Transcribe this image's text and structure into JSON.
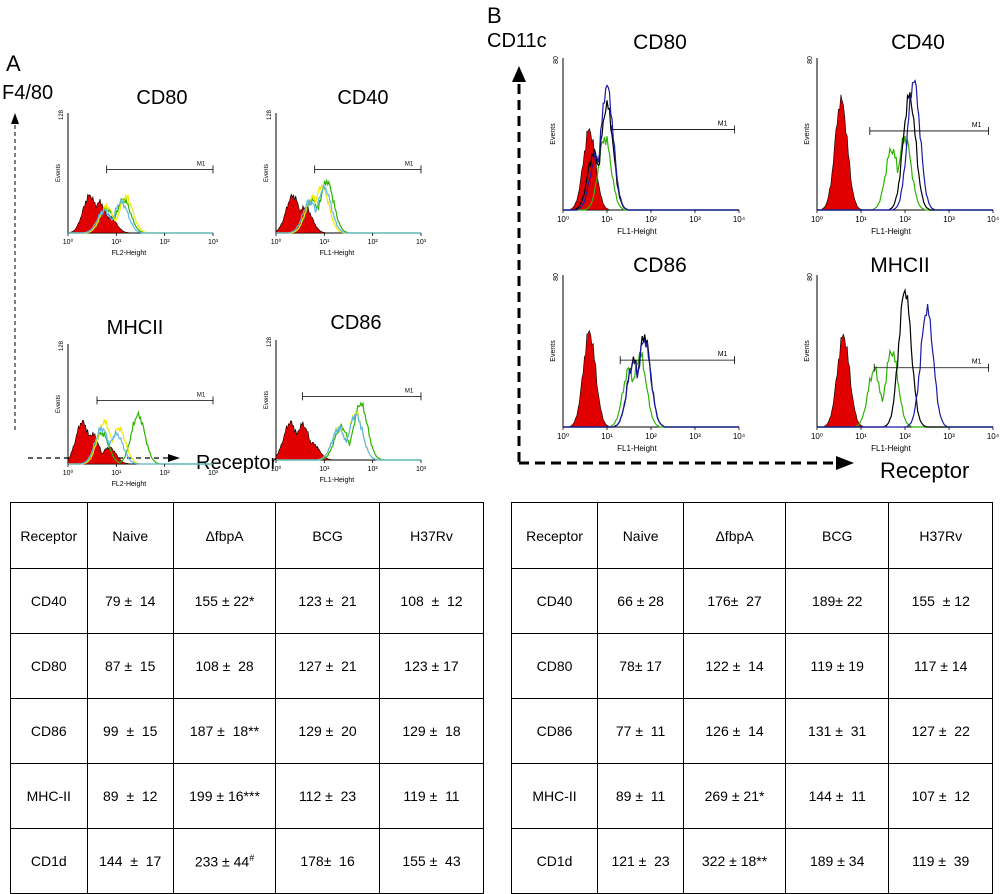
{
  "panels": [
    {
      "letter": "A",
      "axis_label": "F4/80",
      "receptor_label": "Receptor",
      "histograms": [
        {
          "title": "CD80",
          "xlabel": "FL2-Height",
          "ylabel": "Events",
          "ymax_label": "128",
          "gate": "M1",
          "x_ticks": [
            "10⁰",
            "10¹",
            "10²",
            "10³"
          ]
        },
        {
          "title": "CD40",
          "xlabel": "FL1-Height",
          "ylabel": "Events",
          "ymax_label": "128",
          "gate": "M1",
          "x_ticks": [
            "10⁰",
            "10¹",
            "10²",
            "10³"
          ]
        },
        {
          "title": "MHCII",
          "xlabel": "FL2-Height",
          "ylabel": "Events",
          "ymax_label": "128",
          "gate": "M1",
          "x_ticks": [
            "10⁰",
            "10¹",
            "10²",
            "10³"
          ]
        },
        {
          "title": "CD86",
          "xlabel": "FL1-Height",
          "ylabel": "Events",
          "ymax_label": "128",
          "gate": "M1",
          "x_ticks": [
            "10⁰",
            "10¹",
            "10²",
            "10³"
          ]
        }
      ],
      "table": {
        "headers": [
          "Receptor",
          "Naive",
          "ΔfbpA",
          "BCG",
          "H37Rv"
        ],
        "rows": [
          {
            "receptor": "CD40",
            "naive": "79 ±  14",
            "fbpa": "155 ± 22",
            "fbpa_mark": "*",
            "bcg": "123 ±  21",
            "h37rv": "108  ±  12"
          },
          {
            "receptor": "CD80",
            "naive": "87 ±  15",
            "fbpa": "108 ±  28",
            "fbpa_mark": "",
            "bcg": "127 ±  21",
            "h37rv": "123 ± 17"
          },
          {
            "receptor": "CD86",
            "naive": "99  ±  15",
            "fbpa": "187 ±  18",
            "fbpa_mark": "**",
            "bcg": "129 ±  20",
            "h37rv": "129 ±  18"
          },
          {
            "receptor": "MHC-II",
            "naive": "89  ±  12",
            "fbpa": "199 ± 16",
            "fbpa_mark": "***",
            "bcg": "112 ±  23",
            "h37rv": "119 ±  11"
          },
          {
            "receptor": "CD1d",
            "naive": "144  ±  17",
            "fbpa": "233 ± 44",
            "fbpa_mark": "#",
            "bcg": "178±  16",
            "h37rv": "155 ±  43"
          }
        ]
      }
    },
    {
      "letter": "B",
      "axis_label": "CD11c",
      "receptor_label": "Receptor",
      "histograms": [
        {
          "title": "CD80",
          "xlabel": "FL1-Height",
          "ylabel": "Events",
          "ymax_label": "80",
          "gate": "M1",
          "x_ticks": [
            "10⁰",
            "10¹",
            "10²",
            "10³",
            "10⁴"
          ]
        },
        {
          "title": "CD40",
          "xlabel": "FL1-Height",
          "ylabel": "Events",
          "ymax_label": "80",
          "gate": "M1",
          "x_ticks": [
            "10⁰",
            "10¹",
            "10²",
            "10³",
            "10⁴"
          ]
        },
        {
          "title": "CD86",
          "xlabel": "FL1-Height",
          "ylabel": "Events",
          "ymax_label": "80",
          "gate": "M1",
          "x_ticks": [
            "10⁰",
            "10¹",
            "10²",
            "10³",
            "10⁴"
          ]
        },
        {
          "title": "MHCII",
          "xlabel": "FL1-Height",
          "ylabel": "Events",
          "ymax_label": "80",
          "gate": "M1",
          "x_ticks": [
            "10⁰",
            "10¹",
            "10²",
            "10³",
            "10⁴"
          ]
        }
      ],
      "table": {
        "headers": [
          "Receptor",
          "Naive",
          "ΔfbpA",
          "BCG",
          "H37Rv"
        ],
        "rows": [
          {
            "receptor": "CD40",
            "naive": "66 ± 28",
            "fbpa": "176±  27",
            "fbpa_mark": "",
            "bcg": "189± 22",
            "h37rv": "155  ± 12"
          },
          {
            "receptor": "CD80",
            "naive": "78± 17",
            "fbpa": "122 ±  14",
            "fbpa_mark": "",
            "bcg": "119 ± 19",
            "h37rv": "117 ± 14"
          },
          {
            "receptor": "CD86",
            "naive": "77 ±  11",
            "fbpa": "126 ±  14",
            "fbpa_mark": "",
            "bcg": "131 ±  31",
            "h37rv": "127 ±  22"
          },
          {
            "receptor": "MHC-II",
            "naive": "89 ±  11",
            "fbpa": "269 ± 21",
            "fbpa_mark": "*",
            "bcg": "144 ±  11",
            "h37rv": "107 ±  12"
          },
          {
            "receptor": "CD1d",
            "naive": "121 ±  23",
            "fbpa": "322 ± 18",
            "fbpa_mark": "**",
            "bcg": "189 ± 34",
            "h37rv": "119 ±  39"
          }
        ]
      }
    }
  ],
  "chart_data": [
    {
      "type": "table",
      "panel": "A",
      "columns": [
        "Receptor",
        "Naive",
        "ΔfbpA",
        "BCG",
        "H37Rv"
      ],
      "rows": [
        [
          "CD40",
          "79 ± 14",
          "155 ± 22*",
          "123 ± 21",
          "108 ± 12"
        ],
        [
          "CD80",
          "87 ± 15",
          "108 ± 28",
          "127 ± 21",
          "123 ± 17"
        ],
        [
          "CD86",
          "99 ± 15",
          "187 ± 18**",
          "129 ± 20",
          "129 ± 18"
        ],
        [
          "MHC-II",
          "89 ± 12",
          "199 ± 16***",
          "112 ± 23",
          "119 ± 11"
        ],
        [
          "CD1d",
          "144 ± 17",
          "233 ± 44#",
          "178 ± 16",
          "155 ± 43"
        ]
      ]
    },
    {
      "type": "table",
      "panel": "B",
      "columns": [
        "Receptor",
        "Naive",
        "ΔfbpA",
        "BCG",
        "H37Rv"
      ],
      "rows": [
        [
          "CD40",
          "66 ± 28",
          "176 ± 27",
          "189 ± 22",
          "155 ± 12"
        ],
        [
          "CD80",
          "78 ± 17",
          "122 ± 14",
          "119 ± 19",
          "117 ± 14"
        ],
        [
          "CD86",
          "77 ± 11",
          "126 ± 14",
          "131 ± 31",
          "127 ± 22"
        ],
        [
          "MHC-II",
          "89 ± 11",
          "269 ± 21*",
          "144 ± 11",
          "107 ± 12"
        ],
        [
          "CD1d",
          "121 ± 23",
          "322 ± 18**",
          "189 ± 34",
          "119 ± 39"
        ]
      ]
    },
    {
      "type": "area",
      "panel": "A",
      "title": "CD80",
      "xlabel": "FL2-Height",
      "ylabel": "Events",
      "xlim": [
        0,
        3
      ],
      "ylim": [
        0,
        128
      ],
      "x_scale": "log",
      "series": [
        {
          "color": "#e00000",
          "fill": true,
          "peaks": [
            [
              0.45,
              40
            ],
            [
              0.65,
              33
            ],
            [
              0.85,
              18
            ]
          ]
        },
        {
          "color": "#2db300",
          "peaks": [
            [
              0.8,
              26
            ],
            [
              1.15,
              36
            ]
          ]
        },
        {
          "color": "#f2e600",
          "peaks": [
            [
              0.8,
              28
            ],
            [
              1.2,
              38
            ]
          ]
        },
        {
          "color": "#5ab8e6",
          "peaks": [
            [
              0.75,
              24
            ],
            [
              1.1,
              33
            ]
          ]
        }
      ]
    },
    {
      "type": "area",
      "panel": "A",
      "title": "CD40",
      "xlabel": "FL1-Height",
      "ylabel": "Events",
      "xlim": [
        0,
        3
      ],
      "ylim": [
        0,
        128
      ],
      "x_scale": "log",
      "series": [
        {
          "color": "#e00000",
          "fill": true,
          "peaks": [
            [
              0.35,
              40
            ],
            [
              0.6,
              28
            ]
          ]
        },
        {
          "color": "#2db300",
          "peaks": [
            [
              0.75,
              35
            ],
            [
              1.05,
              55
            ]
          ]
        },
        {
          "color": "#f2e600",
          "peaks": [
            [
              0.75,
              38
            ],
            [
              0.95,
              50
            ]
          ]
        },
        {
          "color": "#5ab8e6",
          "peaks": [
            [
              0.7,
              34
            ],
            [
              1.0,
              48
            ]
          ]
        }
      ]
    },
    {
      "type": "area",
      "panel": "A",
      "title": "MHCII",
      "xlabel": "FL2-Height",
      "ylabel": "Events",
      "xlim": [
        0,
        3
      ],
      "ylim": [
        0,
        128
      ],
      "x_scale": "log",
      "series": [
        {
          "color": "#e00000",
          "fill": true,
          "peaks": [
            [
              0.3,
              45
            ],
            [
              0.5,
              32
            ],
            [
              0.85,
              18
            ]
          ]
        },
        {
          "color": "#2db300",
          "peaks": [
            [
              0.7,
              33
            ],
            [
              1.45,
              52
            ]
          ]
        },
        {
          "color": "#f2e600",
          "peaks": [
            [
              0.75,
              45
            ],
            [
              1.05,
              38
            ]
          ]
        },
        {
          "color": "#5ab8e6",
          "peaks": [
            [
              0.7,
              38
            ],
            [
              1.0,
              32
            ]
          ]
        }
      ]
    },
    {
      "type": "area",
      "panel": "A",
      "title": "CD86",
      "xlabel": "FL1-Height",
      "ylabel": "Events",
      "xlim": [
        0,
        3
      ],
      "ylim": [
        0,
        128
      ],
      "x_scale": "log",
      "series": [
        {
          "color": "#e00000",
          "fill": true,
          "peaks": [
            [
              0.3,
              40
            ],
            [
              0.55,
              38
            ],
            [
              0.75,
              18
            ]
          ]
        },
        {
          "color": "#2db300",
          "peaks": [
            [
              1.35,
              35
            ],
            [
              1.75,
              60
            ]
          ]
        },
        {
          "color": "#f2e600",
          "peaks": [
            [
              1.3,
              34
            ],
            [
              1.65,
              50
            ]
          ]
        },
        {
          "color": "#5ab8e6",
          "peaks": [
            [
              1.3,
              33
            ],
            [
              1.65,
              48
            ]
          ]
        }
      ]
    },
    {
      "type": "area",
      "panel": "B",
      "title": "CD80",
      "xlabel": "FL1-Height",
      "ylabel": "Events",
      "xlim": [
        0,
        4
      ],
      "ylim": [
        0,
        80
      ],
      "x_scale": "log",
      "series": [
        {
          "color": "#e00000",
          "fill": true,
          "peaks": [
            [
              0.6,
              42
            ]
          ]
        },
        {
          "color": "#2db300",
          "peaks": [
            [
              0.95,
              38
            ]
          ]
        },
        {
          "color": "#000000",
          "peaks": [
            [
              0.7,
              30
            ],
            [
              1.0,
              55
            ]
          ]
        },
        {
          "color": "#1a1aa6",
          "peaks": [
            [
              0.75,
              28
            ],
            [
              1.0,
              65
            ]
          ]
        }
      ]
    },
    {
      "type": "area",
      "panel": "B",
      "title": "CD40",
      "xlabel": "FL1-Height",
      "ylabel": "Events",
      "xlim": [
        0,
        4
      ],
      "ylim": [
        0,
        80
      ],
      "x_scale": "log",
      "series": [
        {
          "color": "#e00000",
          "fill": true,
          "peaks": [
            [
              0.55,
              58
            ]
          ]
        },
        {
          "color": "#2db300",
          "peaks": [
            [
              1.7,
              32
            ],
            [
              2.0,
              38
            ]
          ]
        },
        {
          "color": "#000000",
          "peaks": [
            [
              2.1,
              60
            ]
          ]
        },
        {
          "color": "#1a1aa6",
          "peaks": [
            [
              2.2,
              68
            ]
          ]
        }
      ]
    },
    {
      "type": "area",
      "panel": "B",
      "title": "CD86",
      "xlabel": "FL1-Height",
      "ylabel": "Events",
      "xlim": [
        0,
        4
      ],
      "ylim": [
        0,
        80
      ],
      "x_scale": "log",
      "series": [
        {
          "color": "#e00000",
          "fill": true,
          "peaks": [
            [
              0.6,
              50
            ]
          ]
        },
        {
          "color": "#2db300",
          "peaks": [
            [
              1.5,
              30
            ],
            [
              1.75,
              38
            ]
          ]
        },
        {
          "color": "#000000",
          "peaks": [
            [
              1.6,
              35
            ],
            [
              1.85,
              48
            ]
          ]
        },
        {
          "color": "#1a1aa6",
          "peaks": [
            [
              1.6,
              34
            ],
            [
              1.85,
              46
            ]
          ]
        }
      ]
    },
    {
      "type": "area",
      "panel": "B",
      "title": "MHCII",
      "xlabel": "FL1-Height",
      "ylabel": "Events",
      "xlim": [
        0,
        4
      ],
      "ylim": [
        0,
        80
      ],
      "x_scale": "log",
      "series": [
        {
          "color": "#e00000",
          "fill": true,
          "peaks": [
            [
              0.6,
              48
            ]
          ]
        },
        {
          "color": "#2db300",
          "peaks": [
            [
              1.3,
              30
            ],
            [
              1.7,
              40
            ]
          ]
        },
        {
          "color": "#000000",
          "peaks": [
            [
              2.0,
              72
            ]
          ]
        },
        {
          "color": "#1a1aa6",
          "peaks": [
            [
              2.5,
              62
            ]
          ]
        }
      ]
    }
  ]
}
